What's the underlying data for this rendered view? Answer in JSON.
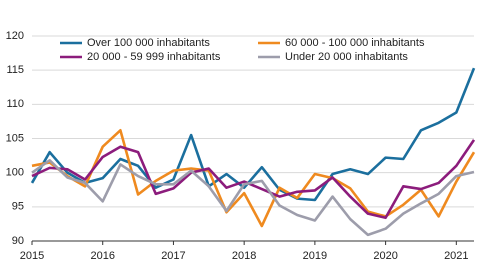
{
  "chart_data": {
    "type": "line",
    "categories": [
      "2015",
      null,
      null,
      null,
      "2016",
      null,
      null,
      null,
      "2017",
      null,
      null,
      null,
      "2018",
      null,
      null,
      null,
      "2019",
      null,
      null,
      null,
      "2020",
      null,
      null,
      null,
      "2021",
      null
    ],
    "series": [
      {
        "name": "Over 100 000 inhabitants",
        "color": "#1b6f9e",
        "values": [
          98.5,
          103,
          100,
          98.5,
          99.2,
          102,
          101,
          97.8,
          99,
          105.5,
          98,
          99.8,
          97.8,
          100.8,
          97.5,
          96.2,
          96,
          99.8,
          100.5,
          99.8,
          102.2,
          102,
          106.2,
          107.3,
          108.8,
          115.3
        ]
      },
      {
        "name": "60 000 - 100 000 inhabitants",
        "color": "#ef8a1f",
        "values": [
          101,
          101.5,
          99.5,
          98,
          103.8,
          106.2,
          96.8,
          98.8,
          100.3,
          100.6,
          100.3,
          94.2,
          97,
          92.2,
          97.8,
          96.3,
          99.8,
          99.2,
          97.7,
          94.3,
          93.6,
          95.3,
          97.5,
          93.6,
          98.7,
          103
        ]
      },
      {
        "name": "20 000 - 59 999 inhabitants",
        "color": "#8c1c7c",
        "values": [
          99.5,
          100.7,
          100.5,
          99,
          102.3,
          103.8,
          103,
          96.9,
          97.7,
          100,
          100.6,
          97.8,
          98.7,
          97.6,
          96.5,
          97.2,
          97.4,
          99.3,
          96.5,
          94,
          93.4,
          98,
          97.6,
          98.5,
          101,
          104.8
        ]
      },
      {
        "name": "Under 20 000 inhabitants",
        "color": "#9d9dab",
        "values": [
          100,
          101.8,
          99.3,
          98.5,
          95.8,
          101.2,
          99.5,
          98.3,
          98.3,
          100.3,
          98,
          94.4,
          98.3,
          98.8,
          95.2,
          93.8,
          93,
          96.5,
          93.2,
          90.9,
          91.8,
          94,
          95.5,
          96.9,
          99.5,
          100.1
        ]
      }
    ],
    "ylim": [
      90,
      120
    ],
    "yticks": [
      90,
      95,
      100,
      105,
      110,
      115,
      120
    ],
    "grid": true
  }
}
